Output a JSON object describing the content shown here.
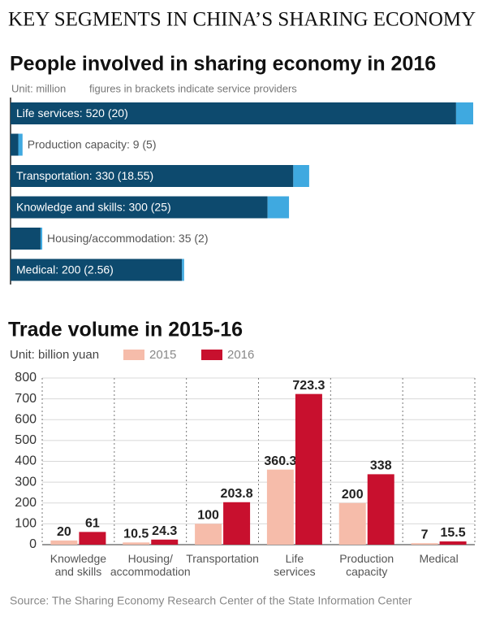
{
  "header": {
    "title": "KEY SEGMENTS IN CHINA’S SHARING ECONOMY"
  },
  "chart_data": [
    {
      "type": "stacked_barh",
      "title": "People involved in sharing economy in 2016",
      "subtitle": [
        "Unit: million",
        "figures in brackets indicate service providers"
      ],
      "categories": [
        "Life services",
        "Production capacity",
        "Transportation",
        "Knowledge and skills",
        "Housing/accommodation",
        "Medical"
      ],
      "labels": [
        "Life services: 520 (20)",
        "Production capacity: 9 (5)",
        "Transportation: 330 (18.55)",
        "Knowledge and skills: 300 (25)",
        "Housing/accommodation: 35 (2)",
        "Medical: 200 (2.56)"
      ],
      "series": [
        {
          "color": "#0d4a6e",
          "values": [
            520,
            9,
            330,
            300,
            35,
            200
          ]
        },
        {
          "color": "#3fa9e0",
          "values": [
            20,
            5,
            18.55,
            25,
            2,
            2.56
          ]
        }
      ],
      "xlim": [
        0,
        540
      ]
    },
    {
      "type": "bar",
      "title": "Trade volume in 2015-16",
      "unit": "Unit: billion yuan",
      "categories": [
        [
          "Knowledge",
          "and skills"
        ],
        [
          "Housing/",
          "accommodation"
        ],
        [
          "Transportation"
        ],
        [
          "Life",
          "services"
        ],
        [
          "Production",
          "capacity"
        ],
        [
          "Medical"
        ]
      ],
      "series": [
        {
          "name": "2015",
          "color": "#f6bcaa",
          "values": [
            20,
            10.5,
            100,
            360.3,
            200,
            7
          ]
        },
        {
          "name": "2016",
          "color": "#c8102e",
          "values": [
            61,
            24.3,
            203.8,
            723.3,
            338,
            15.5
          ]
        }
      ],
      "ylim": [
        0,
        800
      ],
      "yticks": [
        0,
        100,
        200,
        300,
        400,
        500,
        600,
        700,
        800
      ],
      "grid": true
    }
  ],
  "source": "Source: The Sharing Economy Research Center of the State Information Center"
}
